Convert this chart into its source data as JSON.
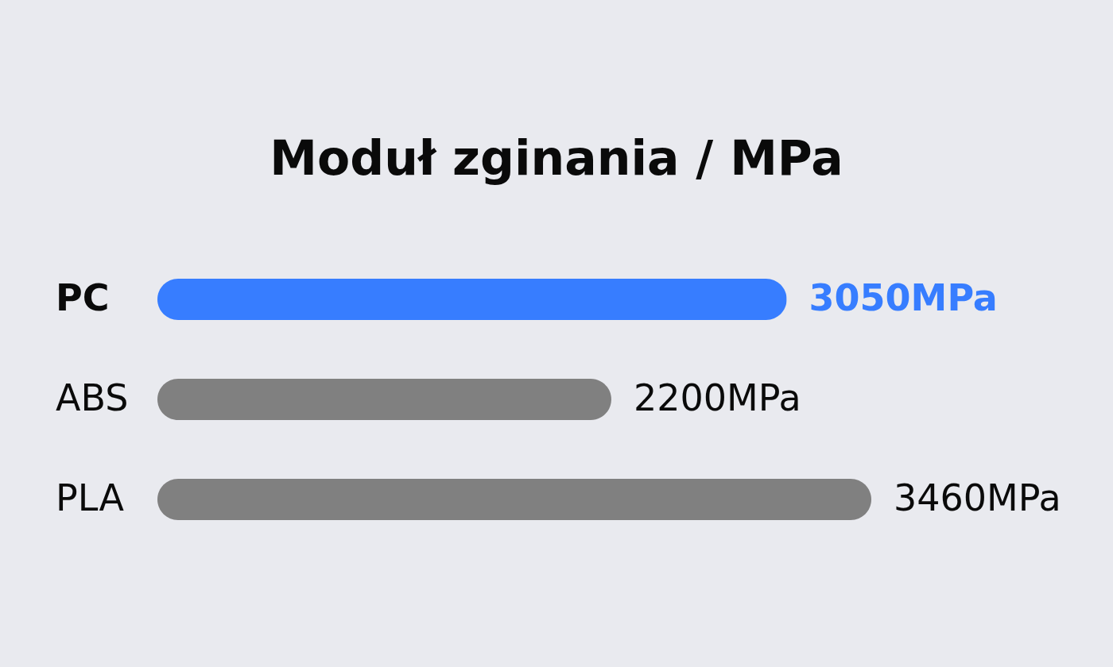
{
  "chart_data": {
    "type": "bar",
    "orientation": "horizontal",
    "title": "Moduł zginania / MPa",
    "categories": [
      "PC",
      "ABS",
      "PLA"
    ],
    "values": [
      3050,
      2200,
      3460
    ],
    "colors": [
      "#377dff",
      "#808080",
      "#808080"
    ],
    "value_labels": [
      "3050MPa",
      "2200MPa",
      "3460MPa"
    ]
  }
}
